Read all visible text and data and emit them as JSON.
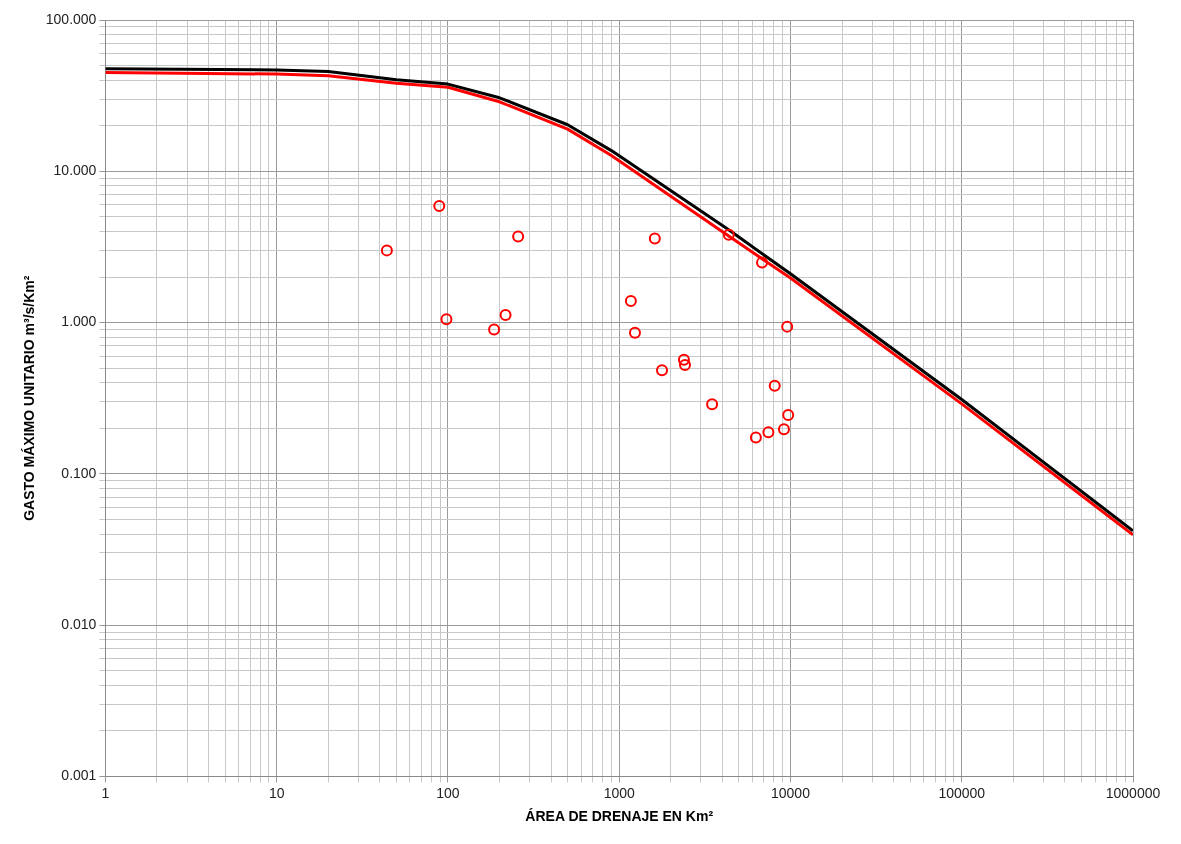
{
  "chart_data": {
    "type": "scatter",
    "xlabel": "ÁREA DE DRENAJE EN Km²",
    "ylabel": "GASTO MÁXIMO UNITARIO m³/s/Km²",
    "log": "xy",
    "grid": true,
    "legend": false,
    "marker": "circle",
    "xlim": [
      1,
      1000000
    ],
    "ylim": [
      0.001,
      100
    ],
    "xticks": [
      1,
      {
        "value": 2,
        "label": null
      },
      {
        "value": 3,
        "label": null
      },
      {
        "value": 4,
        "label": null
      },
      {
        "value": 5,
        "label": null
      },
      {
        "value": 6,
        "label": null
      },
      {
        "value": 7,
        "label": null
      },
      {
        "value": 8,
        "label": null
      },
      {
        "value": 9,
        "label": null
      },
      10,
      {
        "value": 20,
        "label": null
      },
      {
        "value": 30,
        "label": null
      },
      {
        "value": 40,
        "label": null
      },
      {
        "value": 50,
        "label": null
      },
      {
        "value": 60,
        "label": null
      },
      {
        "value": 70,
        "label": null
      },
      {
        "value": 80,
        "label": null
      },
      {
        "value": 90,
        "label": null
      },
      100,
      {
        "value": 200,
        "label": null
      },
      {
        "value": 300,
        "label": null
      },
      {
        "value": 400,
        "label": null
      },
      {
        "value": 500,
        "label": null
      },
      {
        "value": 600,
        "label": null
      },
      {
        "value": 700,
        "label": null
      },
      {
        "value": 800,
        "label": null
      },
      {
        "value": 900,
        "label": null
      },
      1000,
      {
        "value": 2000,
        "label": null
      },
      {
        "value": 3000,
        "label": null
      },
      {
        "value": 4000,
        "label": null
      },
      {
        "value": 5000,
        "label": null
      },
      {
        "value": 6000,
        "label": null
      },
      {
        "value": 7000,
        "label": null
      },
      {
        "value": 8000,
        "label": null
      },
      {
        "value": 9000,
        "label": null
      },
      10000,
      {
        "value": 20000,
        "label": null
      },
      {
        "value": 30000,
        "label": null
      },
      {
        "value": 40000,
        "label": null
      },
      {
        "value": 50000,
        "label": null
      },
      {
        "value": 60000,
        "label": null
      },
      {
        "value": 70000,
        "label": null
      },
      {
        "value": 80000,
        "label": null
      },
      {
        "value": 90000,
        "label": null
      },
      100000,
      {
        "value": 200000,
        "label": null
      },
      {
        "value": 300000,
        "label": null
      },
      {
        "value": 400000,
        "label": null
      },
      {
        "value": 500000,
        "label": null
      },
      {
        "value": 600000,
        "label": null
      },
      {
        "value": 700000,
        "label": null
      },
      {
        "value": 800000,
        "label": null
      },
      {
        "value": 900000,
        "label": null
      },
      1000000
    ],
    "yticks": [
      {
        "value": 0.001,
        "label": "0.001"
      },
      {
        "value": 0.002,
        "label": null
      },
      {
        "value": 0.003,
        "label": null
      },
      {
        "value": 0.004,
        "label": null
      },
      {
        "value": 0.005,
        "label": null
      },
      {
        "value": 0.006,
        "label": null
      },
      {
        "value": 0.007,
        "label": null
      },
      {
        "value": 0.008,
        "label": null
      },
      {
        "value": 0.009,
        "label": null
      },
      {
        "value": 0.01,
        "label": "0.010"
      },
      {
        "value": 0.02,
        "label": null
      },
      {
        "value": 0.03,
        "label": null
      },
      {
        "value": 0.04,
        "label": null
      },
      {
        "value": 0.05,
        "label": null
      },
      {
        "value": 0.06,
        "label": null
      },
      {
        "value": 0.07,
        "label": null
      },
      {
        "value": 0.08,
        "label": null
      },
      {
        "value": 0.09,
        "label": null
      },
      {
        "value": 0.1,
        "label": "0.100"
      },
      {
        "value": 0.2,
        "label": null
      },
      {
        "value": 0.3,
        "label": null
      },
      {
        "value": 0.4,
        "label": null
      },
      {
        "value": 0.5,
        "label": null
      },
      {
        "value": 0.6,
        "label": null
      },
      {
        "value": 0.7,
        "label": null
      },
      {
        "value": 0.8,
        "label": null
      },
      {
        "value": 0.9,
        "label": null
      },
      {
        "value": 1,
        "label": "1.000"
      },
      {
        "value": 2,
        "label": null
      },
      {
        "value": 3,
        "label": null
      },
      {
        "value": 4,
        "label": null
      },
      {
        "value": 5,
        "label": null
      },
      {
        "value": 6,
        "label": null
      },
      {
        "value": 7,
        "label": null
      },
      {
        "value": 8,
        "label": null
      },
      {
        "value": 9,
        "label": null
      },
      {
        "value": 10,
        "label": "10.000"
      },
      {
        "value": 20,
        "label": null
      },
      {
        "value": 30,
        "label": null
      },
      {
        "value": 40,
        "label": null
      },
      {
        "value": 50,
        "label": null
      },
      {
        "value": 60,
        "label": null
      },
      {
        "value": 70,
        "label": null
      },
      {
        "value": 80,
        "label": null
      },
      {
        "value": 90,
        "label": null
      },
      {
        "value": 100,
        "label": "100.000"
      }
    ],
    "series": [
      {
        "type": "line",
        "marker": "none",
        "color": "#000000",
        "x": [
          1,
          10,
          20,
          50,
          100,
          200,
          500,
          900,
          4400,
          10000,
          100000,
          1000000
        ],
        "values": [
          47.7,
          46.7,
          45.7,
          40.3,
          37.7,
          30.6,
          20.3,
          13.7,
          4.07,
          2.1,
          0.31,
          0.042
        ]
      },
      {
        "type": "line",
        "marker": "none",
        "color": "#ff0000",
        "x": [
          1,
          10,
          20,
          50,
          100,
          200,
          500,
          900,
          4400,
          10000,
          100000,
          1000000
        ],
        "values": [
          45.0,
          43.9,
          42.8,
          38.2,
          35.9,
          28.8,
          19,
          12.7,
          3.7,
          1.97,
          0.29,
          0.0395
        ]
      },
      {
        "type": "scatter",
        "color": "#ff0000",
        "x": [
          44,
          89,
          98,
          186,
          217,
          257,
          1170,
          1236,
          1614,
          1778,
          2388,
          2422,
          3486,
          4362,
          6823,
          6281,
          7430,
          8090,
          9160,
          9570,
          9700
        ],
        "values": [
          3.0,
          5.9,
          1.05,
          0.9,
          1.12,
          3.7,
          1.39,
          0.855,
          3.6,
          0.484,
          0.567,
          0.524,
          0.288,
          3.8,
          2.49,
          0.174,
          0.188,
          0.382,
          0.197,
          0.94,
          0.245
        ]
      }
    ]
  }
}
